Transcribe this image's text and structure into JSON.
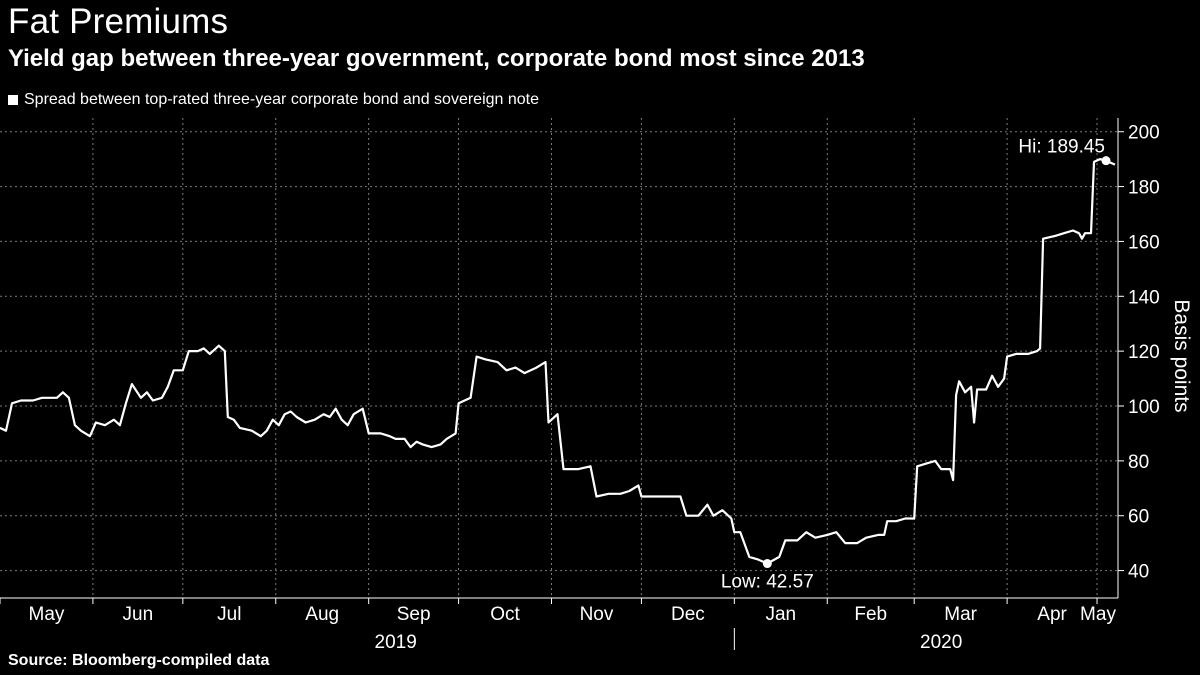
{
  "title": "Fat Premiums",
  "subtitle": "Yield gap between three-year government, corporate bond most since 2013",
  "source": "Source: Bloomberg-compiled data",
  "colors": {
    "background": "#000000",
    "line": "#ffffff",
    "grid": "#7a7a7a"
  },
  "chart_data": {
    "type": "line",
    "title": "Fat Premiums",
    "subtitle": "Yield gap between three-year government, corporate bond most since 2013",
    "ylabel": "Basis points",
    "xlabel": "",
    "ylim": [
      30,
      205
    ],
    "y_ticks": [
      40,
      60,
      80,
      100,
      120,
      140,
      160,
      180,
      200
    ],
    "xlim": [
      "2019-05-01",
      "2020-05-08"
    ],
    "x_ticks": [
      {
        "date": "2019-05-01",
        "label": "May"
      },
      {
        "date": "2019-06-01",
        "label": "Jun"
      },
      {
        "date": "2019-07-01",
        "label": "Jul"
      },
      {
        "date": "2019-08-01",
        "label": "Aug"
      },
      {
        "date": "2019-09-01",
        "label": "Sep"
      },
      {
        "date": "2019-10-01",
        "label": "Oct"
      },
      {
        "date": "2019-11-01",
        "label": "Nov"
      },
      {
        "date": "2019-12-01",
        "label": "Dec"
      },
      {
        "date": "2020-01-01",
        "label": "Jan"
      },
      {
        "date": "2020-02-01",
        "label": "Feb"
      },
      {
        "date": "2020-03-01",
        "label": "Mar"
      },
      {
        "date": "2020-04-01",
        "label": "Apr"
      },
      {
        "date": "2020-05-01",
        "label": "May"
      }
    ],
    "year_labels": [
      {
        "label": "2019",
        "date": "2019-09-10"
      },
      {
        "label": "2020",
        "date": "2020-03-10"
      }
    ],
    "year_divider": "2020-01-01",
    "grid": true,
    "legend_position": "top-left",
    "series": [
      {
        "name": "Spread between top-rated three-year corporate bond and sovereign note",
        "color": "#ffffff",
        "points": [
          [
            "2019-05-01",
            92
          ],
          [
            "2019-05-03",
            91
          ],
          [
            "2019-05-05",
            101
          ],
          [
            "2019-05-08",
            102
          ],
          [
            "2019-05-12",
            102
          ],
          [
            "2019-05-15",
            103
          ],
          [
            "2019-05-20",
            103
          ],
          [
            "2019-05-22",
            105
          ],
          [
            "2019-05-24",
            103
          ],
          [
            "2019-05-26",
            93
          ],
          [
            "2019-05-28",
            91
          ],
          [
            "2019-05-31",
            89
          ],
          [
            "2019-06-02",
            94
          ],
          [
            "2019-06-05",
            93
          ],
          [
            "2019-06-08",
            95
          ],
          [
            "2019-06-10",
            93
          ],
          [
            "2019-06-12",
            101
          ],
          [
            "2019-06-14",
            108
          ],
          [
            "2019-06-17",
            103
          ],
          [
            "2019-06-19",
            105
          ],
          [
            "2019-06-21",
            102
          ],
          [
            "2019-06-24",
            103
          ],
          [
            "2019-06-26",
            107
          ],
          [
            "2019-06-28",
            113
          ],
          [
            "2019-07-01",
            113
          ],
          [
            "2019-07-03",
            120
          ],
          [
            "2019-07-06",
            120
          ],
          [
            "2019-07-08",
            121
          ],
          [
            "2019-07-10",
            119
          ],
          [
            "2019-07-13",
            122
          ],
          [
            "2019-07-15",
            120
          ],
          [
            "2019-07-16",
            96
          ],
          [
            "2019-07-18",
            95
          ],
          [
            "2019-07-20",
            92
          ],
          [
            "2019-07-24",
            91
          ],
          [
            "2019-07-27",
            89
          ],
          [
            "2019-07-29",
            91
          ],
          [
            "2019-07-31",
            95
          ],
          [
            "2019-08-02",
            93
          ],
          [
            "2019-08-04",
            97
          ],
          [
            "2019-08-06",
            98
          ],
          [
            "2019-08-08",
            96
          ],
          [
            "2019-08-11",
            94
          ],
          [
            "2019-08-14",
            95
          ],
          [
            "2019-08-17",
            97
          ],
          [
            "2019-08-19",
            96
          ],
          [
            "2019-08-21",
            99
          ],
          [
            "2019-08-23",
            95
          ],
          [
            "2019-08-25",
            93
          ],
          [
            "2019-08-27",
            97
          ],
          [
            "2019-08-30",
            99
          ],
          [
            "2019-09-01",
            90
          ],
          [
            "2019-09-05",
            90
          ],
          [
            "2019-09-08",
            89
          ],
          [
            "2019-09-10",
            88
          ],
          [
            "2019-09-13",
            88
          ],
          [
            "2019-09-15",
            85
          ],
          [
            "2019-09-17",
            87
          ],
          [
            "2019-09-19",
            86
          ],
          [
            "2019-09-22",
            85
          ],
          [
            "2019-09-25",
            86
          ],
          [
            "2019-09-27",
            88
          ],
          [
            "2019-09-30",
            90
          ],
          [
            "2019-10-01",
            101
          ],
          [
            "2019-10-05",
            103
          ],
          [
            "2019-10-07",
            118
          ],
          [
            "2019-10-10",
            117
          ],
          [
            "2019-10-14",
            116
          ],
          [
            "2019-10-17",
            113
          ],
          [
            "2019-10-20",
            114
          ],
          [
            "2019-10-23",
            112
          ],
          [
            "2019-10-27",
            114
          ],
          [
            "2019-10-30",
            116
          ],
          [
            "2019-10-31",
            94
          ],
          [
            "2019-11-03",
            97
          ],
          [
            "2019-11-05",
            77
          ],
          [
            "2019-11-10",
            77
          ],
          [
            "2019-11-14",
            78
          ],
          [
            "2019-11-16",
            67
          ],
          [
            "2019-11-20",
            68
          ],
          [
            "2019-11-24",
            68
          ],
          [
            "2019-11-27",
            69
          ],
          [
            "2019-11-30",
            71
          ],
          [
            "2019-12-01",
            67
          ],
          [
            "2019-12-06",
            67
          ],
          [
            "2019-12-11",
            67
          ],
          [
            "2019-12-14",
            67
          ],
          [
            "2019-12-16",
            60
          ],
          [
            "2019-12-20",
            60
          ],
          [
            "2019-12-23",
            64
          ],
          [
            "2019-12-25",
            60
          ],
          [
            "2019-12-28",
            62
          ],
          [
            "2019-12-31",
            59
          ],
          [
            "2020-01-01",
            54
          ],
          [
            "2020-01-03",
            54
          ],
          [
            "2020-01-06",
            45
          ],
          [
            "2020-01-09",
            44
          ],
          [
            "2020-01-12",
            42.57
          ],
          [
            "2020-01-16",
            45
          ],
          [
            "2020-01-18",
            51
          ],
          [
            "2020-01-22",
            51
          ],
          [
            "2020-01-25",
            54
          ],
          [
            "2020-01-28",
            52
          ],
          [
            "2020-02-01",
            53
          ],
          [
            "2020-02-04",
            54
          ],
          [
            "2020-02-07",
            50
          ],
          [
            "2020-02-11",
            50
          ],
          [
            "2020-02-14",
            52
          ],
          [
            "2020-02-18",
            53
          ],
          [
            "2020-02-20",
            53
          ],
          [
            "2020-02-21",
            58
          ],
          [
            "2020-02-24",
            58
          ],
          [
            "2020-02-27",
            59
          ],
          [
            "2020-03-01",
            59
          ],
          [
            "2020-03-02",
            78
          ],
          [
            "2020-03-05",
            79
          ],
          [
            "2020-03-08",
            80
          ],
          [
            "2020-03-10",
            77
          ],
          [
            "2020-03-13",
            77
          ],
          [
            "2020-03-14",
            73
          ],
          [
            "2020-03-15",
            104
          ],
          [
            "2020-03-16",
            109
          ],
          [
            "2020-03-18",
            105
          ],
          [
            "2020-03-20",
            107
          ],
          [
            "2020-03-21",
            94
          ],
          [
            "2020-03-22",
            106
          ],
          [
            "2020-03-25",
            106
          ],
          [
            "2020-03-27",
            111
          ],
          [
            "2020-03-29",
            107
          ],
          [
            "2020-03-31",
            110
          ],
          [
            "2020-04-01",
            118
          ],
          [
            "2020-04-04",
            119
          ],
          [
            "2020-04-08",
            119
          ],
          [
            "2020-04-11",
            120
          ],
          [
            "2020-04-12",
            121
          ],
          [
            "2020-04-13",
            161
          ],
          [
            "2020-04-17",
            162
          ],
          [
            "2020-04-20",
            163
          ],
          [
            "2020-04-23",
            164
          ],
          [
            "2020-04-25",
            163
          ],
          [
            "2020-04-26",
            161
          ],
          [
            "2020-04-27",
            163
          ],
          [
            "2020-04-29",
            163
          ],
          [
            "2020-04-30",
            189
          ],
          [
            "2020-05-02",
            190
          ],
          [
            "2020-05-04",
            189.45
          ],
          [
            "2020-05-07",
            188
          ]
        ]
      }
    ],
    "annotations": [
      {
        "label": "Hi: 189.45",
        "date": "2020-05-04",
        "value": 189.45,
        "position": "above-left"
      },
      {
        "label": "Low: 42.57",
        "date": "2020-01-12",
        "value": 42.57,
        "position": "below"
      }
    ]
  }
}
